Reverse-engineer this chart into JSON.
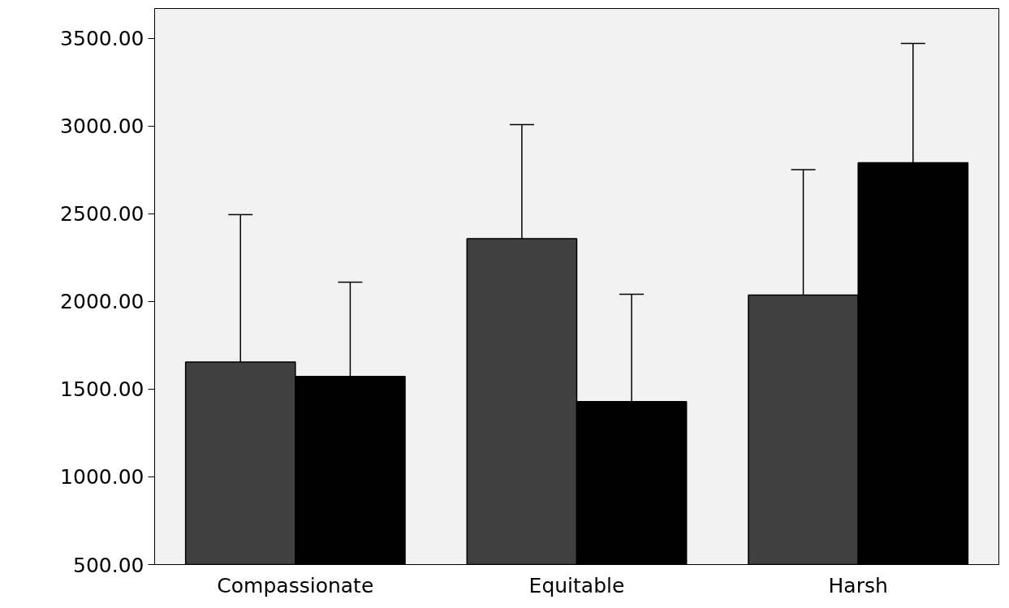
{
  "chart_data": {
    "type": "bar",
    "categories": [
      "Compassionate",
      "Equitable",
      "Harsh"
    ],
    "series": [
      {
        "color": "#404040",
        "values": [
          1655,
          2358,
          2036
        ],
        "errors": [
          840,
          650,
          715
        ]
      },
      {
        "color": "#000000",
        "values": [
          1572,
          1429,
          2791
        ],
        "errors": [
          538,
          612,
          680
        ]
      }
    ],
    "ylim": [
      500,
      3670
    ],
    "yticks": [
      {
        "value": 500,
        "label": "500.00"
      },
      {
        "value": 1000,
        "label": "1000.00"
      },
      {
        "value": 1500,
        "label": "1500.00"
      },
      {
        "value": 2000,
        "label": "2000.00"
      },
      {
        "value": 2500,
        "label": "2500.00"
      },
      {
        "value": 3000,
        "label": "3000.00"
      },
      {
        "value": 3500,
        "label": "3500.00"
      }
    ],
    "grid": false
  }
}
